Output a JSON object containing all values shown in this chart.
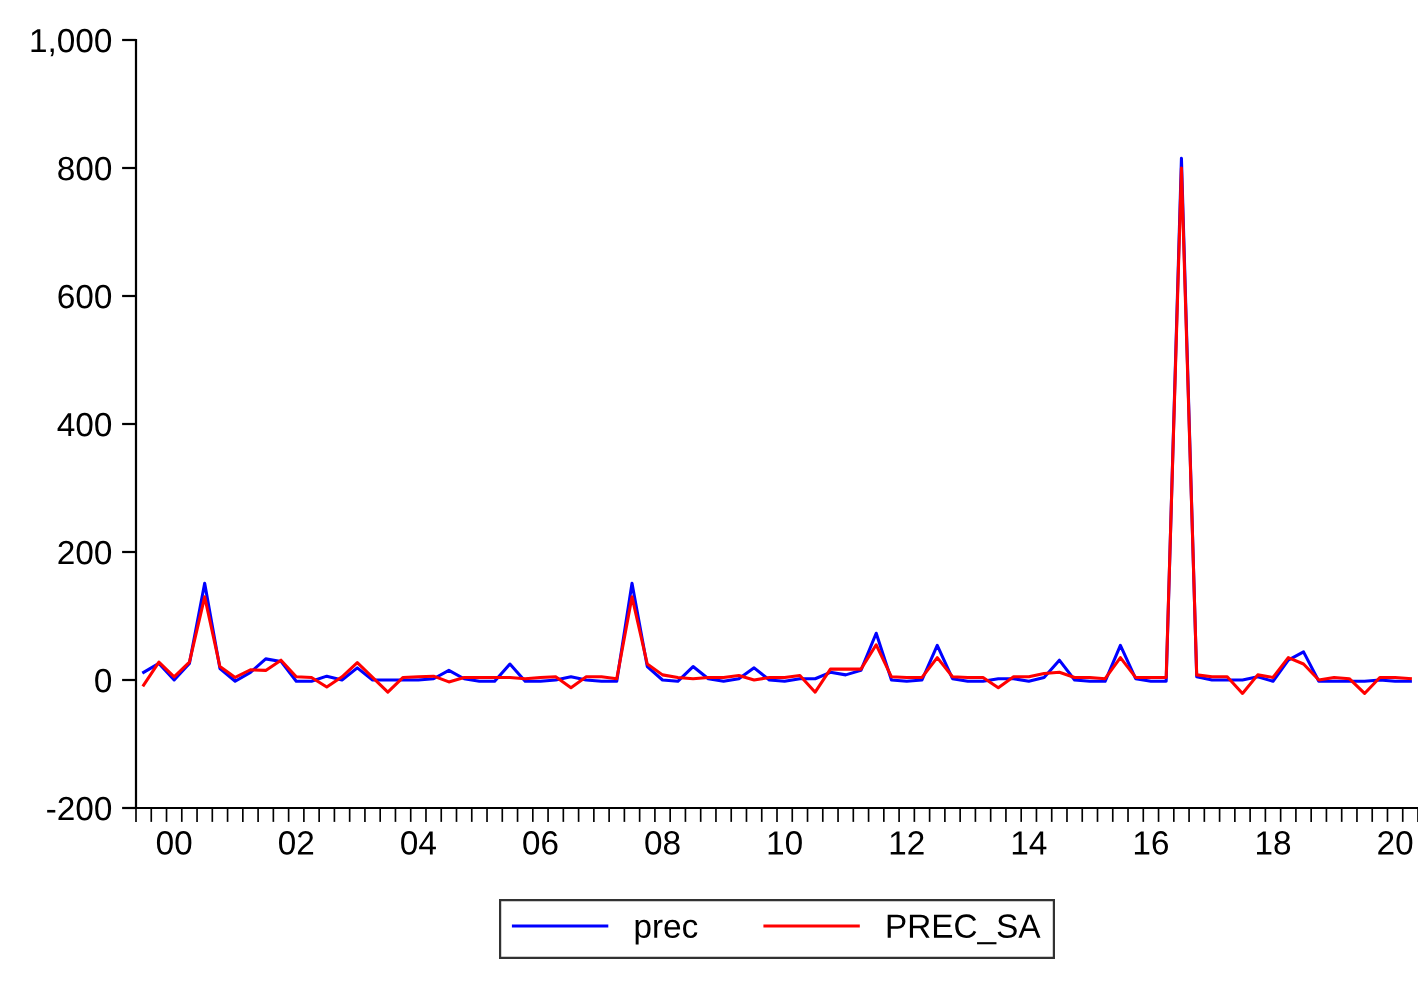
{
  "chart_data": {
    "type": "line",
    "categories": [
      null,
      null,
      "00",
      null,
      null,
      null,
      null,
      null,
      null,
      null,
      "02",
      null,
      null,
      null,
      null,
      null,
      null,
      null,
      "04",
      null,
      null,
      null,
      null,
      null,
      null,
      null,
      "06",
      null,
      null,
      null,
      null,
      null,
      null,
      null,
      "08",
      null,
      null,
      null,
      null,
      null,
      null,
      null,
      "10",
      null,
      null,
      null,
      null,
      null,
      null,
      null,
      "12",
      null,
      null,
      null,
      null,
      null,
      null,
      null,
      "14",
      null,
      null,
      null,
      null,
      null,
      null,
      null,
      "16",
      null,
      null,
      null,
      null,
      null,
      null,
      null,
      "18",
      null,
      null,
      null,
      null,
      null,
      null,
      null,
      "20",
      null
    ],
    "series": [
      {
        "name": "prec",
        "color": "#0000ff",
        "values": [
          12,
          26,
          0,
          26,
          151,
          18,
          -2,
          12,
          33,
          29,
          -2,
          -2,
          6,
          0,
          19,
          0,
          0,
          0,
          0,
          2,
          15,
          2,
          -2,
          -2,
          25,
          -2,
          -2,
          0,
          5,
          0,
          -2,
          -2,
          151,
          21,
          0,
          -2,
          21,
          2,
          -2,
          2,
          19,
          0,
          -2,
          2,
          2,
          12,
          8,
          15,
          73,
          0,
          -2,
          0,
          54,
          2,
          -2,
          -2,
          2,
          2,
          -2,
          4,
          31,
          0,
          -2,
          -2,
          54,
          2,
          -2,
          -2,
          815,
          5,
          0,
          0,
          0,
          5,
          -2,
          31,
          44,
          -2,
          -2,
          -2,
          -2,
          0,
          -2,
          -2
        ]
      },
      {
        "name": "PREC_SA",
        "color": "#ff0000",
        "values": [
          -8,
          28,
          5,
          28,
          130,
          21,
          4,
          16,
          15,
          31,
          5,
          4,
          -11,
          5,
          27,
          4,
          -19,
          4,
          5,
          6,
          -3,
          4,
          4,
          4,
          4,
          2,
          4,
          5,
          -12,
          5,
          5,
          2,
          130,
          25,
          8,
          4,
          2,
          4,
          4,
          7,
          0,
          4,
          4,
          7,
          -19,
          17,
          17,
          17,
          55,
          5,
          4,
          4,
          35,
          5,
          4,
          4,
          -12,
          5,
          5,
          10,
          12,
          4,
          4,
          2,
          35,
          4,
          4,
          4,
          800,
          8,
          5,
          5,
          -21,
          8,
          4,
          35,
          25,
          0,
          4,
          2,
          -21,
          4,
          4,
          2
        ]
      }
    ],
    "ylim": [
      -200,
      1000
    ],
    "yticks": [
      -200,
      0,
      200,
      400,
      600,
      800,
      {
        "value": 1000,
        "label": "1,000"
      }
    ],
    "grid": false,
    "legend": "bottom",
    "line_style": "solid"
  }
}
